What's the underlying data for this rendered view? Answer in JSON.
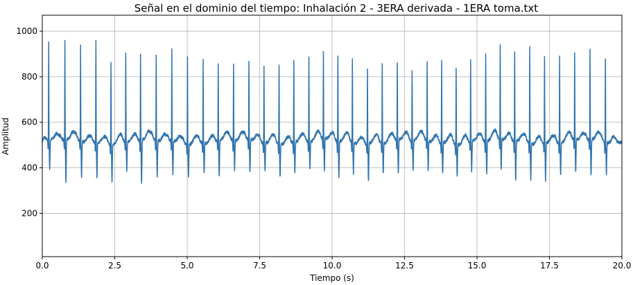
{
  "chart_data": {
    "type": "line",
    "title": "Señal en el dominio del tiempo: Inhalación 2 - 3ERA derivada - 1ERA toma.txt",
    "xlabel": "Tiempo (s)",
    "ylabel": "Amplitud",
    "xlim": [
      0,
      20
    ],
    "ylim": [
      10,
      1070
    ],
    "x_ticks": [
      0,
      2.5,
      5,
      7.5,
      10,
      12.5,
      15,
      17.5,
      20
    ],
    "x_tick_labels": [
      "0.0",
      "2.5",
      "5.0",
      "7.5",
      "10.0",
      "12.5",
      "15.0",
      "17.5",
      "20.0"
    ],
    "y_ticks": [
      200,
      400,
      600,
      800,
      1000
    ],
    "y_tick_labels": [
      "200",
      "400",
      "600",
      "800",
      "1000"
    ],
    "grid": true,
    "line_color": "#3274ae",
    "series": [
      {
        "baseline": 515,
        "beats": [
          {
            "t": 0.22,
            "peak": 945,
            "trough": 385
          },
          {
            "t": 0.78,
            "peak": 950,
            "trough": 328
          },
          {
            "t": 1.32,
            "peak": 942,
            "trough": 355
          },
          {
            "t": 1.85,
            "peak": 960,
            "trough": 365
          },
          {
            "t": 2.37,
            "peak": 885,
            "trough": 348
          },
          {
            "t": 2.88,
            "peak": 903,
            "trough": 385
          },
          {
            "t": 3.39,
            "peak": 890,
            "trough": 320
          },
          {
            "t": 3.93,
            "peak": 895,
            "trough": 357
          },
          {
            "t": 4.47,
            "peak": 920,
            "trough": 367
          },
          {
            "t": 5.01,
            "peak": 898,
            "trough": 374
          },
          {
            "t": 5.55,
            "peak": 880,
            "trough": 385
          },
          {
            "t": 6.07,
            "peak": 862,
            "trough": 358
          },
          {
            "t": 6.6,
            "peak": 860,
            "trough": 388
          },
          {
            "t": 7.13,
            "peak": 862,
            "trough": 372
          },
          {
            "t": 7.65,
            "peak": 855,
            "trough": 388
          },
          {
            "t": 8.17,
            "peak": 865,
            "trough": 370
          },
          {
            "t": 8.68,
            "peak": 872,
            "trough": 382
          },
          {
            "t": 9.2,
            "peak": 890,
            "trough": 390
          },
          {
            "t": 9.7,
            "peak": 900,
            "trough": 373
          },
          {
            "t": 10.2,
            "peak": 898,
            "trough": 360
          },
          {
            "t": 10.7,
            "peak": 880,
            "trough": 380
          },
          {
            "t": 11.22,
            "peak": 852,
            "trough": 350
          },
          {
            "t": 11.73,
            "peak": 868,
            "trough": 382
          },
          {
            "t": 12.25,
            "peak": 860,
            "trough": 365
          },
          {
            "t": 12.76,
            "peak": 830,
            "trough": 385
          },
          {
            "t": 13.28,
            "peak": 870,
            "trough": 385
          },
          {
            "t": 13.78,
            "peak": 878,
            "trough": 378
          },
          {
            "t": 14.28,
            "peak": 858,
            "trough": 375
          },
          {
            "t": 14.78,
            "peak": 875,
            "trough": 385
          },
          {
            "t": 15.3,
            "peak": 905,
            "trough": 375
          },
          {
            "t": 15.8,
            "peak": 925,
            "trough": 385
          },
          {
            "t": 16.3,
            "peak": 908,
            "trough": 340
          },
          {
            "t": 16.82,
            "peak": 950,
            "trough": 355
          },
          {
            "t": 17.33,
            "peak": 900,
            "trough": 350
          },
          {
            "t": 17.85,
            "peak": 898,
            "trough": 370
          },
          {
            "t": 18.37,
            "peak": 900,
            "trough": 370
          },
          {
            "t": 18.9,
            "peak": 922,
            "trough": 355
          },
          {
            "t": 19.43,
            "peak": 890,
            "trough": 375
          }
        ]
      }
    ]
  }
}
